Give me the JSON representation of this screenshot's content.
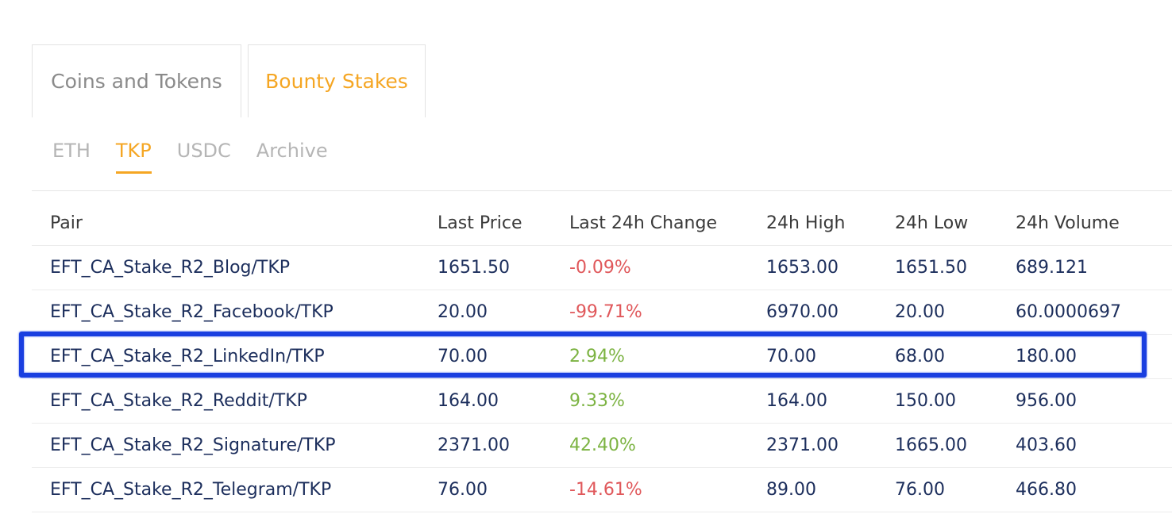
{
  "main_tabs": [
    {
      "label": "Coins and Tokens",
      "active": false
    },
    {
      "label": "Bounty Stakes",
      "active": true
    }
  ],
  "sub_tabs": [
    {
      "label": "ETH",
      "active": false
    },
    {
      "label": "TKP",
      "active": true
    },
    {
      "label": "USDC",
      "active": false
    },
    {
      "label": "Archive",
      "active": false
    }
  ],
  "table": {
    "headers": {
      "pair": "Pair",
      "last_price": "Last Price",
      "change": "Last 24h Change",
      "high": "24h High",
      "low": "24h Low",
      "volume": "24h Volume"
    },
    "rows": [
      {
        "pair": "EFT_CA_Stake_R2_Blog/TKP",
        "last_price": "1651.50",
        "change": "-0.09%",
        "high": "1653.00",
        "low": "1651.50",
        "volume": "689.121"
      },
      {
        "pair": "EFT_CA_Stake_R2_Facebook/TKP",
        "last_price": "20.00",
        "change": "-99.71%",
        "high": "6970.00",
        "low": "20.00",
        "volume": "60.0000697"
      },
      {
        "pair": "EFT_CA_Stake_R2_LinkedIn/TKP",
        "last_price": "70.00",
        "change": "2.94%",
        "high": "70.00",
        "low": "68.00",
        "volume": "180.00"
      },
      {
        "pair": "EFT_CA_Stake_R2_Reddit/TKP",
        "last_price": "164.00",
        "change": "9.33%",
        "high": "164.00",
        "low": "150.00",
        "volume": "956.00"
      },
      {
        "pair": "EFT_CA_Stake_R2_Signature/TKP",
        "last_price": "2371.00",
        "change": "42.40%",
        "high": "2371.00",
        "low": "1665.00",
        "volume": "403.60"
      },
      {
        "pair": "EFT_CA_Stake_R2_Telegram/TKP",
        "last_price": "76.00",
        "change": "-14.61%",
        "high": "89.00",
        "low": "76.00",
        "volume": "466.80"
      }
    ]
  },
  "colors": {
    "accent": "#f5a623",
    "negative": "#e0585b",
    "positive": "#7cb342",
    "text": "#1c2e5c",
    "highlight": "#1a3fe0"
  }
}
